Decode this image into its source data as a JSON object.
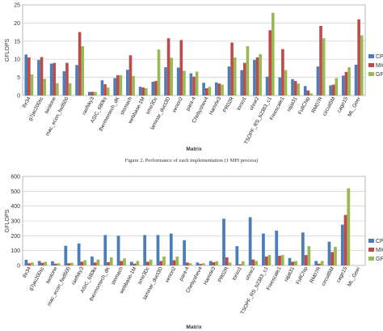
{
  "figure1_caption": "Figure 2.   Performance of each implementation (1 MPI process)",
  "legend_series_names": [
    "CPU",
    "MIC",
    "GPU"
  ],
  "colors": {
    "CPU": "#4a7ebb",
    "MIC": "#be4b48",
    "GPU": "#98b954"
  },
  "chart_data": [
    {
      "type": "bar",
      "ylabel": "GFLOPS",
      "xlabel": "Matrix",
      "ylim": [
        0,
        25
      ],
      "yticks": [
        0,
        5,
        10,
        15,
        20,
        25
      ],
      "grid": true,
      "legend": "right",
      "categories": [
        "lhr34",
        "g7jac200sc",
        "twotone",
        "mac_econ_fwd500",
        "rajat31_",
        "raefsky3",
        "ASIC_680ks",
        "thermomech_dK",
        "stomach",
        "webbase-1M",
        "sme3Dc",
        "laminar_duct3D",
        "xenon2",
        "para-4",
        "Chebyshev4",
        "Hamrle3",
        "PR02R",
        "torso1",
        "ohne2",
        "TSOPF_RS_b2383_c1",
        "Freescale1",
        "rajat31",
        "FullChip",
        "RM07R",
        "circuit5M",
        "cage15",
        "ML_Geer"
      ],
      "category_labels": [
        "lhr34",
        "g7jac200sc",
        "twotone",
        "mac_econ_fwd500",
        "",
        "raefsky3",
        "ASIC_680ks",
        "thermomech_dK",
        "stomach",
        "webbase-1M",
        "sme3Dc",
        "laminar_duct3D",
        "xenon2",
        "para-4",
        "Chebyshev4",
        "Hamrle3",
        "PR02R",
        "torso1",
        "ohne2",
        "TSOPF_RS_b2383_c1",
        "Freescale1",
        "rajat31",
        "FullChip",
        "RM07R",
        "circuit5M",
        "cage15",
        "ML_Geer"
      ],
      "series": [
        {
          "name": "CPU",
          "values": [
            11.3,
            9.8,
            8.8,
            6.7,
            8.4,
            1.0,
            4.2,
            4.8,
            7.1,
            2.4,
            3.8,
            7.8,
            7.7,
            6.1,
            3.5,
            3.6,
            8.0,
            7.0,
            9.8,
            5.2,
            5.0,
            4.5,
            2.6,
            8.0,
            2.8,
            5.5,
            8.5
          ]
        },
        {
          "name": "MIC",
          "values": [
            10.5,
            10.6,
            9.0,
            9.0,
            17.5,
            1.0,
            3.1,
            5.6,
            11.1,
            2.2,
            4.0,
            15.8,
            15.3,
            5.2,
            2.0,
            3.3,
            14.6,
            9.0,
            10.5,
            18.0,
            12.8,
            4.0,
            1.4,
            19.2,
            3.0,
            6.5,
            21.0
          ]
        },
        {
          "name": "GPU",
          "values": [
            5.8,
            4.6,
            3.4,
            3.4,
            13.6,
            1.0,
            2.2,
            5.6,
            5.4,
            2.0,
            12.7,
            10.4,
            6.8,
            6.6,
            2.4,
            3.0,
            10.5,
            13.6,
            11.4,
            22.8,
            7.0,
            3.3,
            0.6,
            15.8,
            4.8,
            7.8,
            16.6
          ]
        }
      ]
    },
    {
      "type": "bar",
      "ylabel": "GFLOPS",
      "xlabel": "Matrix",
      "ylim": [
        0,
        600
      ],
      "yticks": [
        0,
        100,
        200,
        300,
        400,
        500,
        600
      ],
      "grid": true,
      "legend": "right",
      "categories": [
        "lhr34",
        "g7jac200sc",
        "twotone",
        "mac_econ_fwd500",
        "raefsky3",
        "ASIC_680ks",
        "thermomech_dK",
        "stomach",
        "webbase-1M",
        "sme3Dc",
        "laminar_duct3D",
        "xenon2",
        "para-4",
        "Chebyshev4",
        "Hamrle3",
        "PR02R",
        "torso1",
        "ohne2",
        "TSOPF_RS_b2383_c1",
        "Freescale1",
        "rajat31",
        "FullChip",
        "RM07R",
        "circuit5M",
        "cage15",
        "ML_Geer"
      ],
      "series": [
        {
          "name": "CPU",
          "values": [
            38,
            30,
            28,
            133,
            148,
            60,
            205,
            200,
            25,
            205,
            205,
            215,
            170,
            20,
            30,
            315,
            130,
            325,
            215,
            235,
            50,
            222,
            30,
            160,
            275,
            0
          ]
        },
        {
          "name": "MIC",
          "values": [
            15,
            18,
            12,
            15,
            25,
            20,
            22,
            30,
            12,
            25,
            30,
            35,
            20,
            10,
            22,
            55,
            8,
            40,
            60,
            65,
            25,
            70,
            12,
            90,
            340,
            0
          ]
        },
        {
          "name": "GPU",
          "values": [
            20,
            25,
            15,
            18,
            35,
            40,
            55,
            48,
            30,
            40,
            60,
            60,
            15,
            15,
            28,
            20,
            28,
            30,
            70,
            70,
            30,
            130,
            30,
            125,
            520,
            0
          ]
        }
      ]
    }
  ]
}
